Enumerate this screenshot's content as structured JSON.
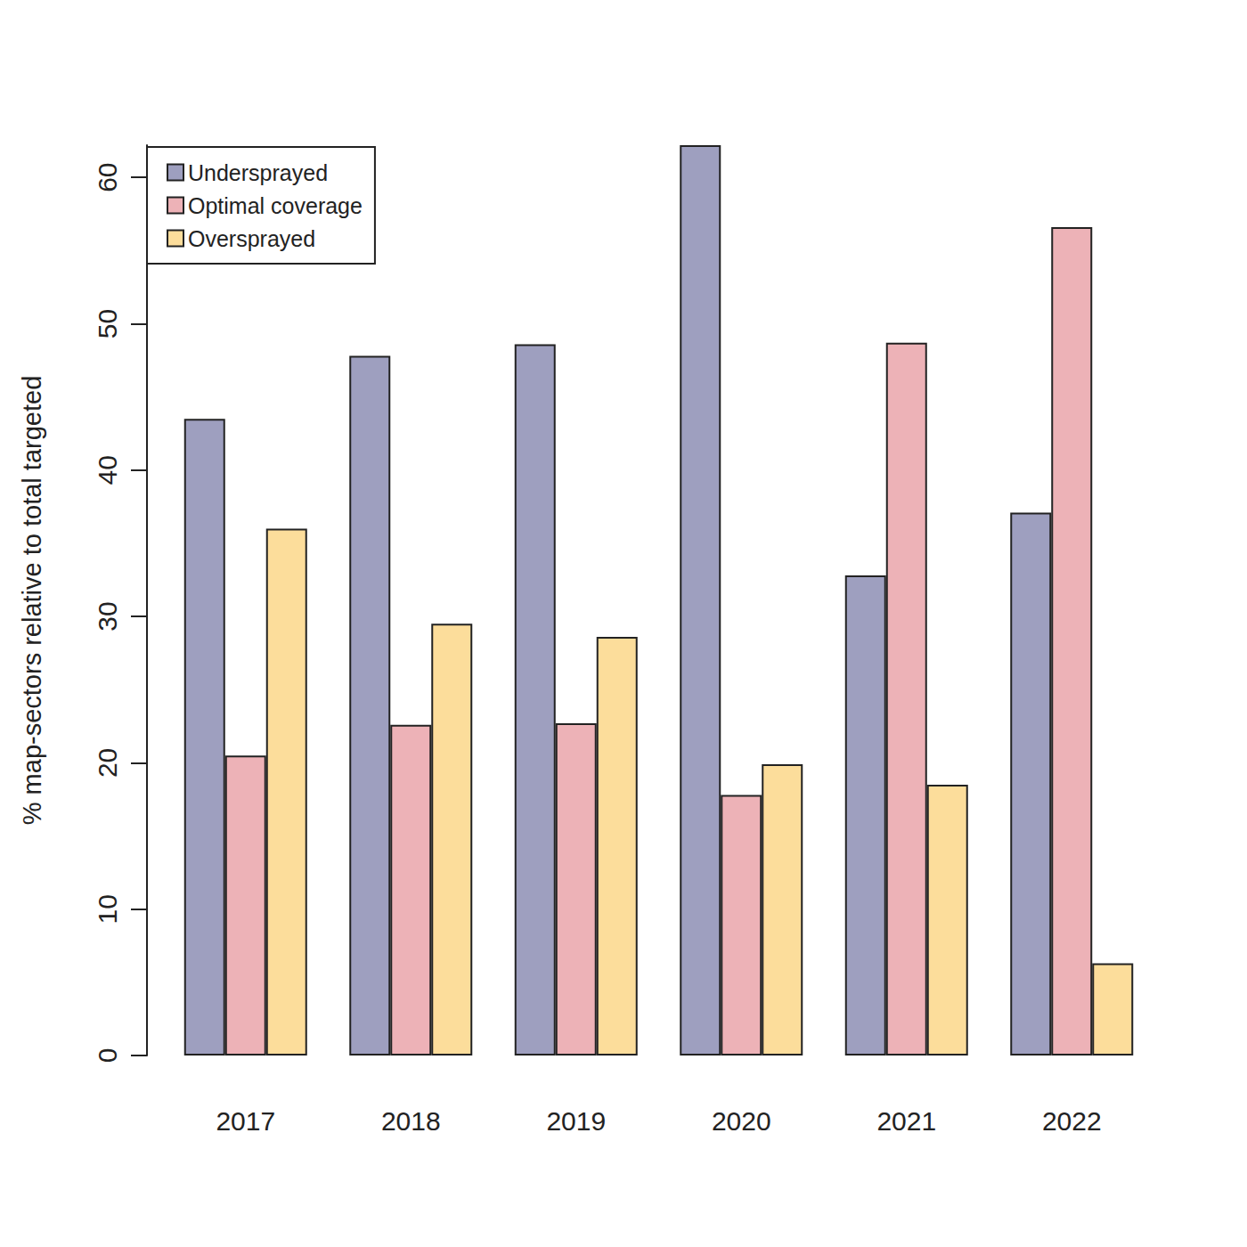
{
  "chart_data": {
    "type": "bar",
    "y_label": "% map-sectors relative to total targeted",
    "categories": [
      "2017",
      "2018",
      "2019",
      "2020",
      "2021",
      "2022"
    ],
    "series": [
      {
        "name": "Undersprayed",
        "color": "#9e9fbf",
        "values": [
          43.5,
          47.8,
          48.6,
          62.2,
          32.8,
          37.1
        ]
      },
      {
        "name": "Optimal coverage",
        "color": "#edb2b7",
        "values": [
          20.5,
          22.6,
          22.7,
          17.8,
          48.7,
          56.6
        ]
      },
      {
        "name": "Oversprayed",
        "color": "#fcdd9b",
        "values": [
          36.0,
          29.5,
          28.6,
          19.9,
          18.5,
          6.3
        ]
      }
    ],
    "ylim": [
      0,
      62.2
    ],
    "yticks": [
      0,
      10,
      20,
      30,
      40,
      50,
      60
    ],
    "grid": false,
    "legend": "topleft"
  }
}
